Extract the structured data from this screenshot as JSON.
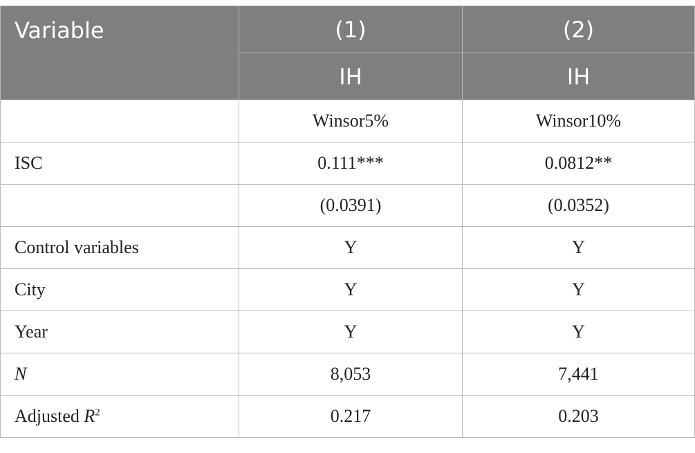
{
  "header": {
    "variable": "Variable",
    "columns": [
      "(1)",
      "(2)"
    ],
    "dependent": [
      "IH",
      "IH"
    ]
  },
  "rows": [
    {
      "label": "",
      "values": [
        "Winsor5%",
        "Winsor10%"
      ]
    },
    {
      "label": "ISC",
      "values": [
        "0.111***",
        "0.0812**"
      ]
    },
    {
      "label": "",
      "values": [
        "(0.0391)",
        "(0.0352)"
      ]
    },
    {
      "label": "Control variables",
      "values": [
        "Y",
        "Y"
      ]
    },
    {
      "label": "City",
      "values": [
        "Y",
        "Y"
      ]
    },
    {
      "label": "Year",
      "values": [
        "Y",
        "Y"
      ]
    },
    {
      "label": "N",
      "values": [
        "8,053",
        "7,441"
      ]
    },
    {
      "label": "Adjusted R",
      "label_sup": "2",
      "values": [
        "0.217",
        "0.203"
      ]
    }
  ]
}
